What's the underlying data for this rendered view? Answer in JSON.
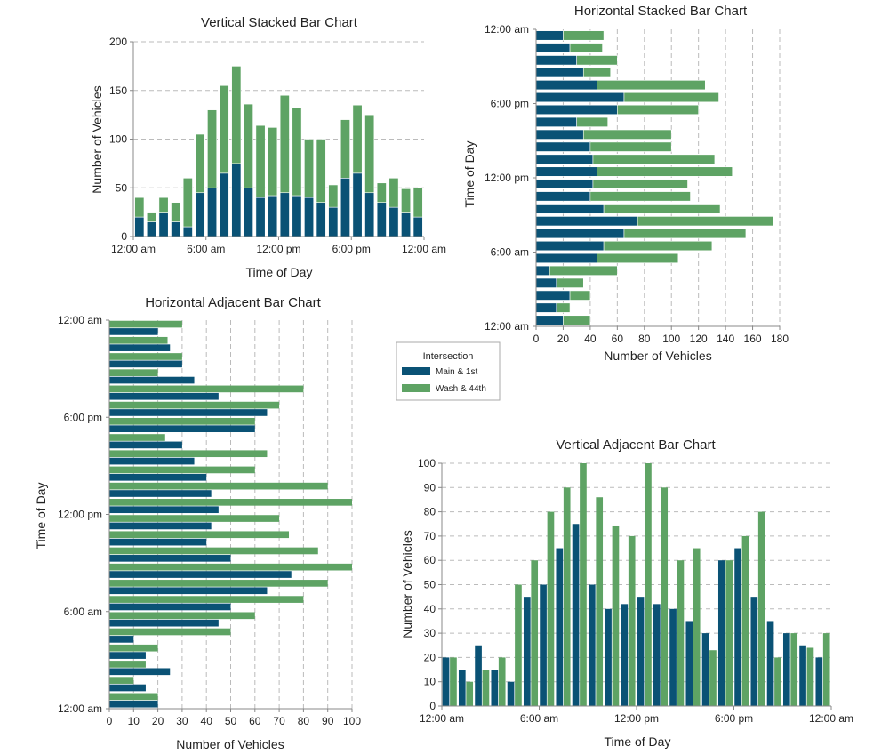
{
  "colors": {
    "main": "#0a5275",
    "wash": "#5ea364",
    "grid": "#bbbbbb",
    "axis": "#888888"
  },
  "legend": {
    "title": "Intersection",
    "entries": [
      "Main & 1st",
      "Wash & 44th"
    ]
  },
  "chart_data": [
    {
      "type": "bar",
      "layout": "vertical-stacked",
      "title": "Vertical Stacked Bar Chart",
      "xlabel": "Time of Day",
      "ylabel": "Number of Vehicles",
      "ylim": [
        0,
        200
      ],
      "yticks": [
        "0",
        "50",
        "100",
        "150",
        "200"
      ],
      "xticks": [
        "12:00 am",
        "6:00 am",
        "12:00 pm",
        "6:00 pm",
        "12:00 am"
      ],
      "categories": [
        "0",
        "1",
        "2",
        "3",
        "4",
        "5",
        "6",
        "7",
        "8",
        "9",
        "10",
        "11",
        "12",
        "13",
        "14",
        "15",
        "16",
        "17",
        "18",
        "19",
        "20",
        "21",
        "22",
        "23"
      ],
      "series": [
        {
          "name": "Main & 1st",
          "values": [
            20,
            15,
            25,
            15,
            10,
            45,
            50,
            65,
            75,
            50,
            40,
            42,
            45,
            42,
            40,
            35,
            30,
            60,
            65,
            45,
            35,
            30,
            25,
            20
          ]
        },
        {
          "name": "Wash & 44th",
          "values": [
            20,
            10,
            15,
            20,
            50,
            60,
            80,
            90,
            100,
            86,
            74,
            70,
            100,
            90,
            60,
            65,
            23,
            60,
            70,
            80,
            20,
            30,
            24,
            30
          ]
        }
      ],
      "grid": "horizontal dashed"
    },
    {
      "type": "bar",
      "layout": "horizontal-stacked",
      "title": "Horizontal Stacked Bar Chart",
      "xlabel": "Number of Vehicles",
      "ylabel": "Time of Day",
      "xlim": [
        0,
        180
      ],
      "xticks": [
        "0",
        "20",
        "40",
        "60",
        "80",
        "100",
        "120",
        "140",
        "160",
        "180"
      ],
      "yticks": [
        "12:00 am",
        "6:00 am",
        "12:00 pm",
        "6:00 pm",
        "12:00 am"
      ],
      "categories": [
        "0",
        "1",
        "2",
        "3",
        "4",
        "5",
        "6",
        "7",
        "8",
        "9",
        "10",
        "11",
        "12",
        "13",
        "14",
        "15",
        "16",
        "17",
        "18",
        "19",
        "20",
        "21",
        "22",
        "23"
      ],
      "series": [
        {
          "name": "Main & 1st",
          "values": [
            20,
            15,
            25,
            15,
            10,
            45,
            50,
            65,
            75,
            50,
            40,
            42,
            45,
            42,
            40,
            35,
            30,
            60,
            65,
            45,
            35,
            30,
            25,
            20
          ]
        },
        {
          "name": "Wash & 44th",
          "values": [
            20,
            10,
            15,
            20,
            50,
            60,
            80,
            90,
            100,
            86,
            74,
            70,
            100,
            90,
            60,
            65,
            23,
            60,
            70,
            80,
            20,
            30,
            24,
            30
          ]
        }
      ],
      "grid": "vertical dashed"
    },
    {
      "type": "bar",
      "layout": "horizontal-adjacent",
      "title": "Horizontal Adjacent Bar Chart",
      "xlabel": "Number of Vehicles",
      "ylabel": "Time of Day",
      "xlim": [
        0,
        100
      ],
      "xticks": [
        "0",
        "10",
        "20",
        "30",
        "40",
        "50",
        "60",
        "70",
        "80",
        "90",
        "100"
      ],
      "yticks": [
        "12:00 am",
        "6:00 am",
        "12:00 pm",
        "6:00 pm",
        "12:00 am"
      ],
      "categories": [
        "0",
        "1",
        "2",
        "3",
        "4",
        "5",
        "6",
        "7",
        "8",
        "9",
        "10",
        "11",
        "12",
        "13",
        "14",
        "15",
        "16",
        "17",
        "18",
        "19",
        "20",
        "21",
        "22",
        "23"
      ],
      "series": [
        {
          "name": "Main & 1st",
          "values": [
            20,
            15,
            25,
            15,
            10,
            45,
            50,
            65,
            75,
            50,
            40,
            42,
            45,
            42,
            40,
            35,
            30,
            60,
            65,
            45,
            35,
            30,
            25,
            20
          ]
        },
        {
          "name": "Wash & 44th",
          "values": [
            20,
            10,
            15,
            20,
            50,
            60,
            80,
            90,
            100,
            86,
            74,
            70,
            100,
            90,
            60,
            65,
            23,
            60,
            70,
            80,
            20,
            30,
            24,
            30
          ]
        }
      ],
      "grid": "vertical dashed"
    },
    {
      "type": "bar",
      "layout": "vertical-adjacent",
      "title": "Vertical Adjacent Bar Chart",
      "xlabel": "Time of Day",
      "ylabel": "Number of Vehicles",
      "ylim": [
        0,
        100
      ],
      "yticks": [
        "0",
        "10",
        "20",
        "30",
        "40",
        "50",
        "60",
        "70",
        "80",
        "90",
        "100"
      ],
      "xticks": [
        "12:00 am",
        "6:00 am",
        "12:00 pm",
        "6:00 pm",
        "12:00 am"
      ],
      "categories": [
        "0",
        "1",
        "2",
        "3",
        "4",
        "5",
        "6",
        "7",
        "8",
        "9",
        "10",
        "11",
        "12",
        "13",
        "14",
        "15",
        "16",
        "17",
        "18",
        "19",
        "20",
        "21",
        "22",
        "23"
      ],
      "series": [
        {
          "name": "Main & 1st",
          "values": [
            20,
            15,
            25,
            15,
            10,
            45,
            50,
            65,
            75,
            50,
            40,
            42,
            45,
            42,
            40,
            35,
            30,
            60,
            65,
            45,
            35,
            30,
            25,
            20
          ]
        },
        {
          "name": "Wash & 44th",
          "values": [
            20,
            10,
            15,
            20,
            50,
            60,
            80,
            90,
            100,
            86,
            74,
            70,
            100,
            90,
            60,
            65,
            23,
            60,
            70,
            80,
            20,
            30,
            24,
            30
          ]
        }
      ],
      "grid": "horizontal dashed"
    }
  ]
}
